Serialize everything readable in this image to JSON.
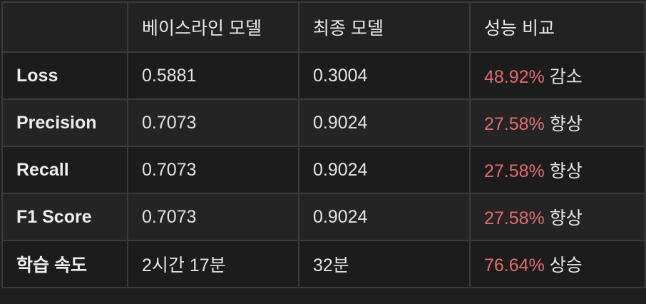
{
  "table": {
    "headers": [
      "",
      "베이스라인 모델",
      "최종 모델",
      "성능 비교"
    ],
    "rows": [
      {
        "metric": "Loss",
        "baseline": "0.5881",
        "final": "0.3004",
        "pct": "48.92%",
        "change": "감소"
      },
      {
        "metric": "Precision",
        "baseline": "0.7073",
        "final": "0.9024",
        "pct": "27.58%",
        "change": "향상"
      },
      {
        "metric": "Recall",
        "baseline": "0.7073",
        "final": "0.9024",
        "pct": "27.58%",
        "change": "향상"
      },
      {
        "metric": "F1 Score",
        "baseline": "0.7073",
        "final": "0.9024",
        "pct": "27.58%",
        "change": "향상"
      },
      {
        "metric": "학습 속도",
        "baseline": "2시간 17분",
        "final": "32분",
        "pct": "76.64%",
        "change": "상승"
      }
    ]
  },
  "colors": {
    "background": "#1e1e1e",
    "border": "#3a3a3a",
    "text": "#e6e6e6",
    "percent_accent": "#e06c6c"
  }
}
